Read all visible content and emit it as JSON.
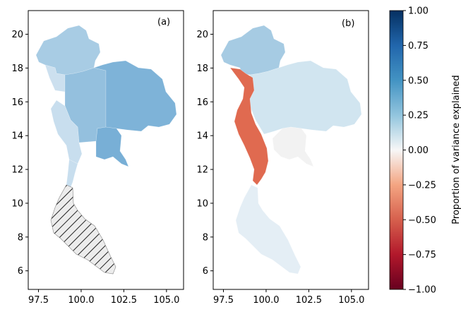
{
  "chart_data": [
    {
      "type": "choropleth",
      "panel_label": "(a)",
      "xlim": [
        96.9,
        106.0
      ],
      "ylim": [
        4.9,
        21.4
      ],
      "xticks": [
        "97.5",
        "100.0",
        "102.5",
        "105.0"
      ],
      "yticks": [
        "6",
        "8",
        "10",
        "12",
        "14",
        "16",
        "18",
        "20"
      ],
      "regions": [
        {
          "name": "north",
          "value": 0.35,
          "color": "#a8cce4"
        },
        {
          "name": "northwest-strip",
          "value": 0.2,
          "color": "#cce0ef"
        },
        {
          "name": "central",
          "value": 0.4,
          "color": "#94c0de"
        },
        {
          "name": "northeast",
          "value": 0.45,
          "color": "#7eb3d8"
        },
        {
          "name": "east",
          "value": 0.48,
          "color": "#78afd6"
        },
        {
          "name": "west",
          "value": 0.2,
          "color": "#c8deee"
        },
        {
          "name": "isthmus",
          "value": 0.2,
          "color": "#c8deee"
        },
        {
          "name": "south",
          "value": null,
          "hatched": true,
          "color": "#e6e6e6"
        }
      ]
    },
    {
      "type": "choropleth",
      "panel_label": "(b)",
      "xlim": [
        96.9,
        106.0
      ],
      "ylim": [
        4.9,
        21.4
      ],
      "xticks": [
        "97.5",
        "100.0",
        "102.5",
        "105.0"
      ],
      "yticks": [
        "6",
        "8",
        "10",
        "12",
        "14",
        "16",
        "18",
        "20"
      ],
      "regions": [
        {
          "name": "north",
          "value": 0.35,
          "color": "#a6cbe3"
        },
        {
          "name": "central-northeast",
          "value": 0.18,
          "color": "#d1e5f0"
        },
        {
          "name": "west-corridor",
          "value": -0.55,
          "color": "#e06a50"
        },
        {
          "name": "east",
          "value": 0.02,
          "color": "#f2f2f2"
        },
        {
          "name": "south",
          "value": 0.08,
          "color": "#e4eef5"
        }
      ]
    }
  ],
  "colorbar": {
    "label": "Proportion of variance explained",
    "range": [
      -1.0,
      1.0
    ],
    "ticks": [
      "1.00",
      "0.75",
      "0.50",
      "0.25",
      "0.00",
      "−0.25",
      "−0.50",
      "−0.75",
      "−1.00"
    ],
    "colormap": "RdBu"
  }
}
